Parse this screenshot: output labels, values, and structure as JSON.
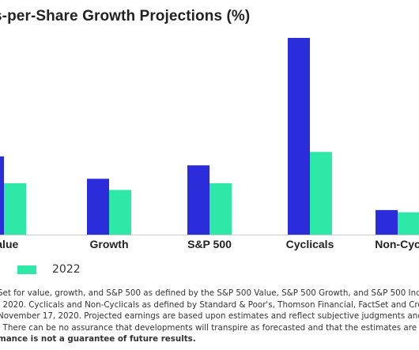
{
  "title": "s-per-Share Growth Projections (%)",
  "chart_data": {
    "type": "bar",
    "categories": [
      "Value",
      "Growth",
      "S&P 500",
      "Cyclicals",
      "Non-Cyc"
    ],
    "series": [
      {
        "color": "#2B2DDB",
        "values": [
          17.5,
          12.5,
          15.5,
          44.0,
          5.5
        ]
      },
      {
        "name": "2022",
        "color": "#2EE8A8",
        "values": [
          11.5,
          10.0,
          11.5,
          18.5,
          5.0
        ]
      }
    ],
    "ylim": [
      0,
      50
    ],
    "grid": false,
    "legend_position": "bottom-left"
  },
  "legend": {
    "label": "2022"
  },
  "footnote": {
    "lines": [
      "Set for value, growth, and S&P 500 as defined by the S&P 500 Value, S&P 500 Growth, and S&P 500 Inde",
      ", 2020. Cyclicals and Non-Cyclicals as defined by Standard & Poor's, Thomson Financial, FactSet and Cre",
      "November 17, 2020. Projected earnings are based upon estimates and reflect subjective judgments and",
      ". There can be no assurance that developments will transpire as forecasted and that the estimates are ac"
    ],
    "bold_line": "mance is not a guarantee of future results."
  }
}
